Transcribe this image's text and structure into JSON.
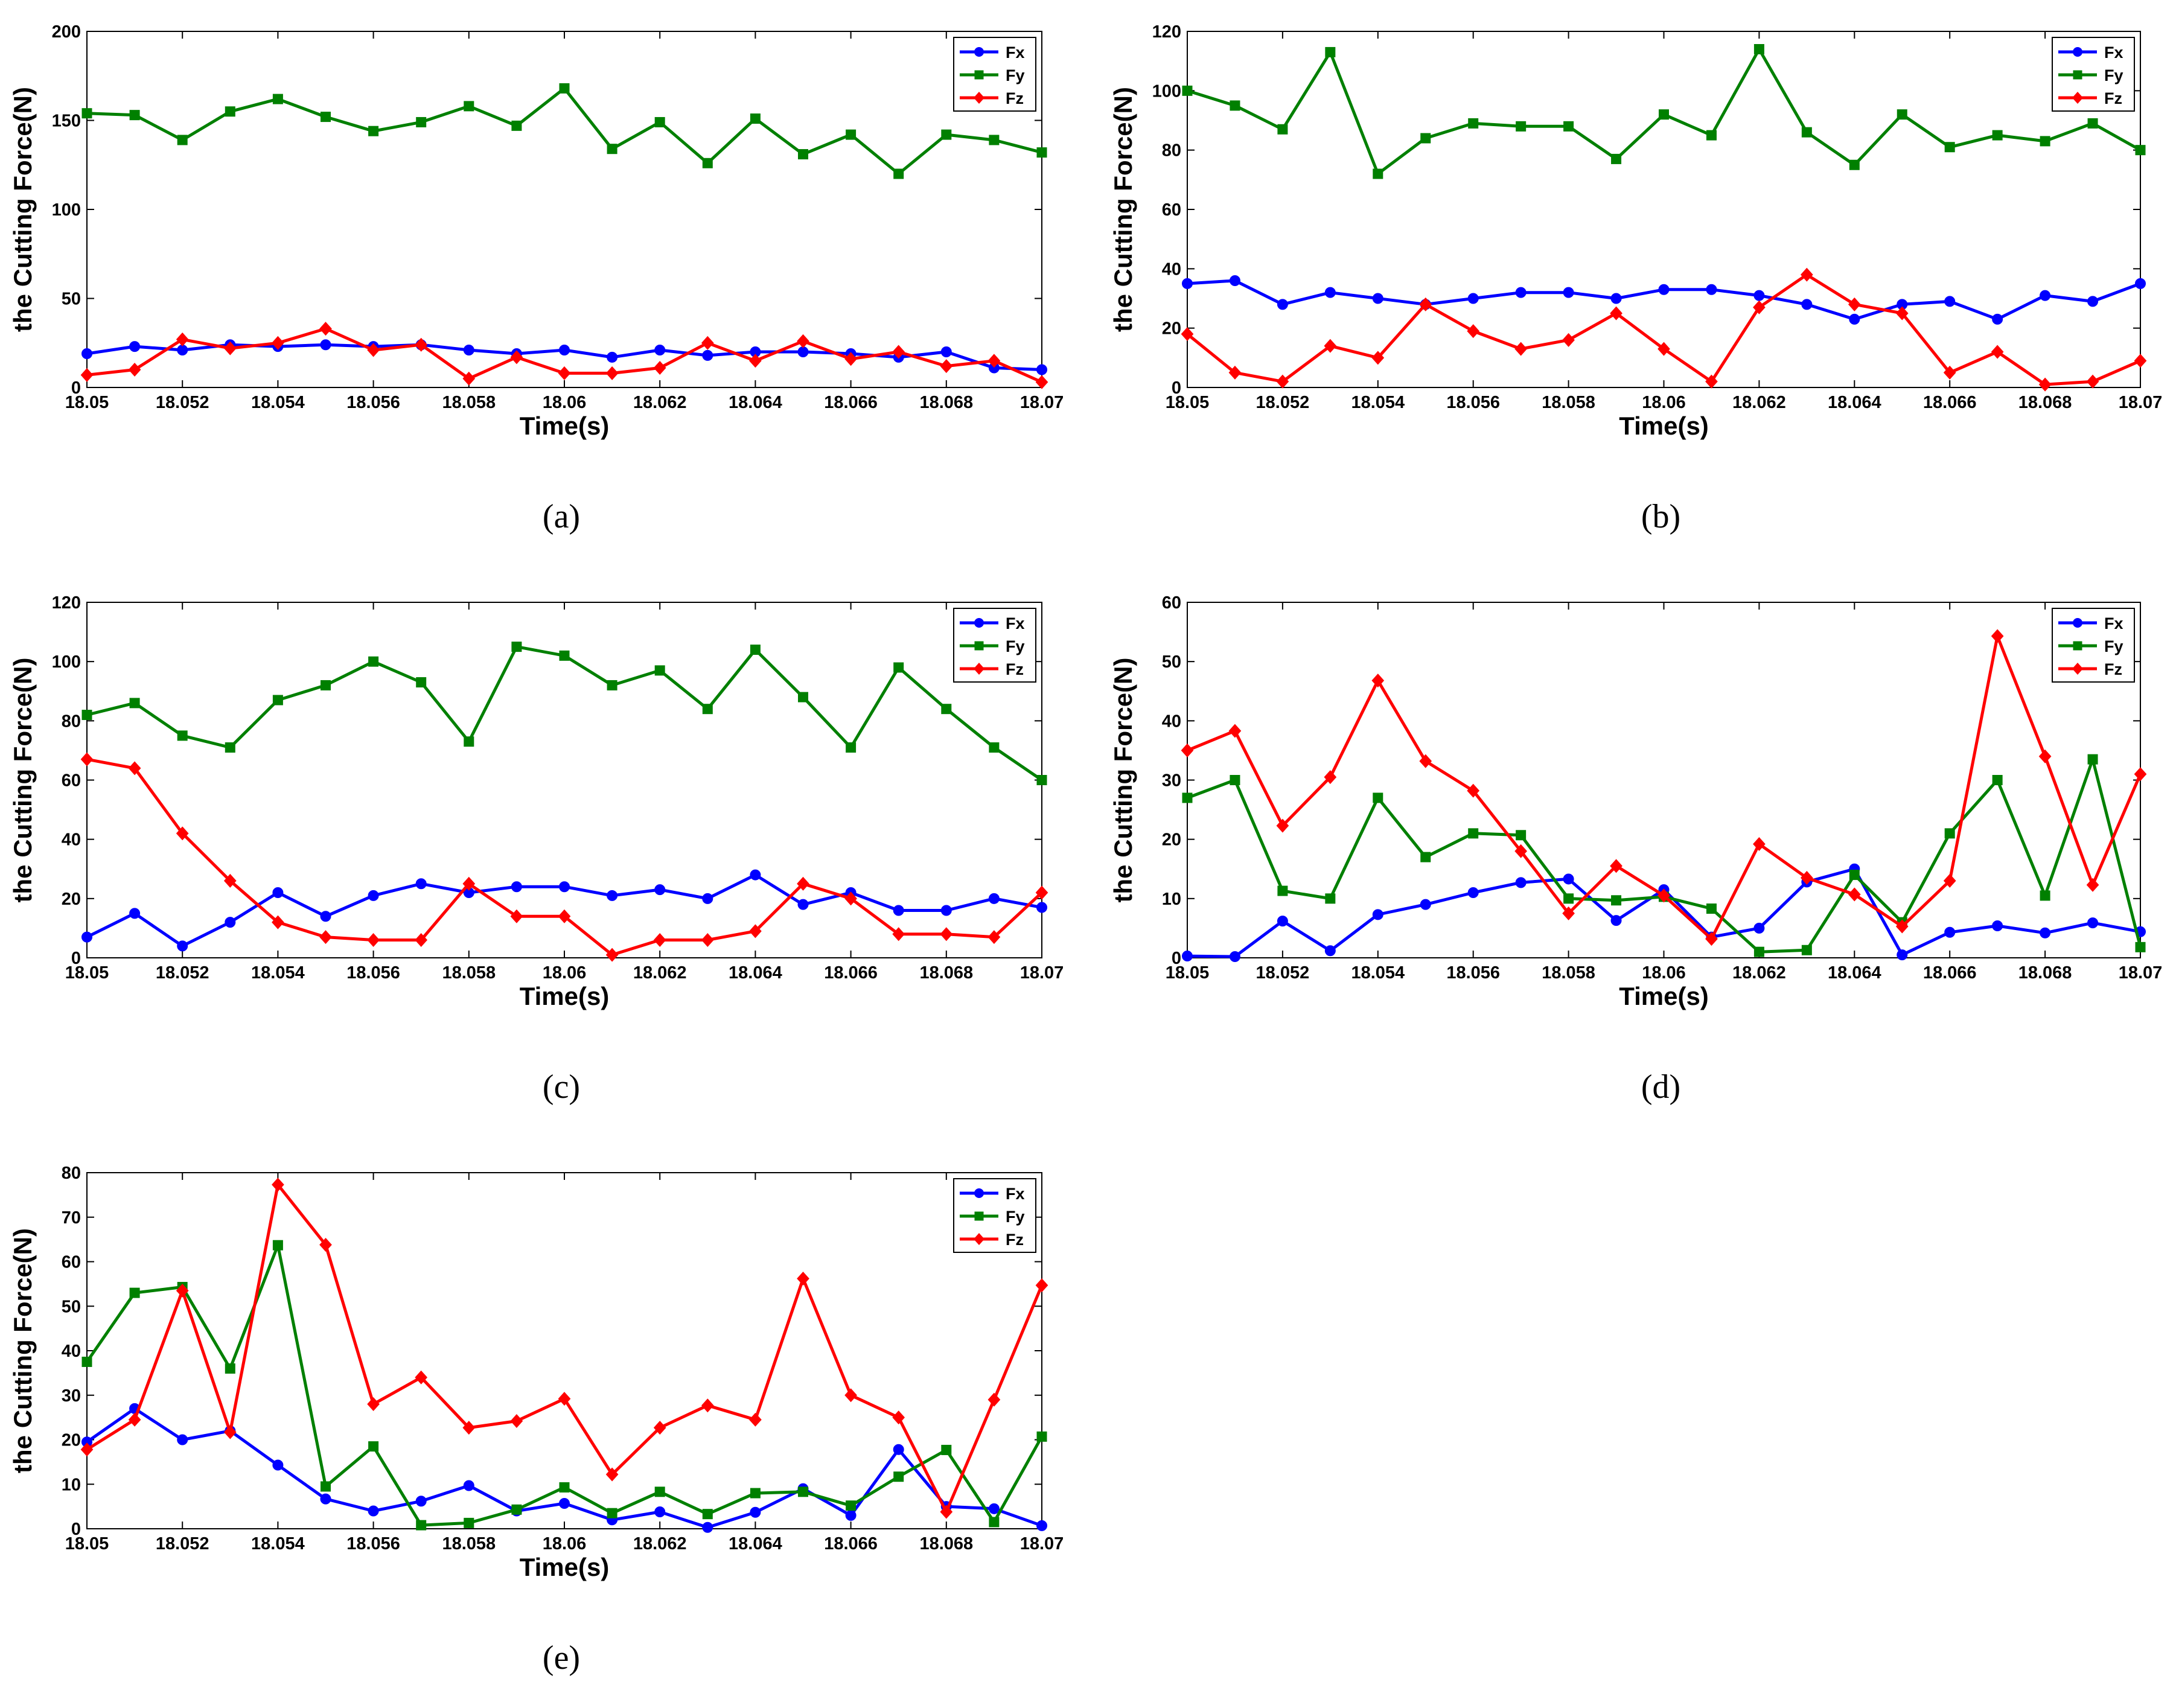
{
  "chart_data": [
    {
      "type": "line",
      "panel_label": "(a)",
      "title": "",
      "xlabel": "Time(s)",
      "ylabel": "the Cutting Force(N)",
      "xlim": [
        18.05,
        18.07
      ],
      "ylim": [
        0,
        200
      ],
      "xticks": [
        "18.05",
        "18.052",
        "18.054",
        "18.056",
        "18.058",
        "18.06",
        "18.062",
        "18.064",
        "18.066",
        "18.068",
        "18.07"
      ],
      "yticks": [
        "0",
        "50",
        "100",
        "150",
        "200"
      ],
      "legend_position": "top-right",
      "x": [
        18.05,
        18.051,
        18.052,
        18.053,
        18.054,
        18.055,
        18.056,
        18.057,
        18.058,
        18.059,
        18.06,
        18.061,
        18.062,
        18.063,
        18.064,
        18.065,
        18.066,
        18.067,
        18.068,
        18.069,
        18.07
      ],
      "series": [
        {
          "name": "Fx",
          "color": "#0000ff",
          "marker": "circle",
          "values": [
            19,
            23,
            21,
            24,
            23,
            24,
            23,
            24,
            21,
            19,
            21,
            17,
            21,
            18,
            20,
            20,
            19,
            17,
            20,
            11,
            10
          ]
        },
        {
          "name": "Fy",
          "color": "#008000",
          "marker": "square",
          "values": [
            154,
            153,
            139,
            155,
            162,
            152,
            144,
            149,
            158,
            147,
            168,
            134,
            149,
            126,
            151,
            131,
            142,
            120,
            142,
            139,
            132
          ]
        },
        {
          "name": "Fz",
          "color": "#ff0000",
          "marker": "diamond",
          "values": [
            7,
            10,
            27,
            22,
            25,
            33,
            21,
            24,
            5,
            17,
            8,
            8,
            11,
            25,
            15,
            26,
            16,
            20,
            12,
            15,
            3
          ]
        }
      ]
    },
    {
      "type": "line",
      "panel_label": "(b)",
      "title": "",
      "xlabel": "Time(s)",
      "ylabel": "the Cutting Force(N)",
      "xlim": [
        18.05,
        18.07
      ],
      "ylim": [
        0,
        120
      ],
      "xticks": [
        "18.05",
        "18.052",
        "18.054",
        "18.056",
        "18.058",
        "18.06",
        "18.062",
        "18.064",
        "18.066",
        "18.068",
        "18.07"
      ],
      "yticks": [
        "0",
        "20",
        "40",
        "60",
        "80",
        "100",
        "120"
      ],
      "legend_position": "top-right",
      "x": [
        18.05,
        18.051,
        18.052,
        18.053,
        18.054,
        18.055,
        18.056,
        18.057,
        18.058,
        18.059,
        18.06,
        18.061,
        18.062,
        18.063,
        18.064,
        18.065,
        18.066,
        18.067,
        18.068,
        18.069,
        18.07
      ],
      "series": [
        {
          "name": "Fx",
          "color": "#0000ff",
          "marker": "circle",
          "values": [
            35,
            36,
            28,
            32,
            30,
            28,
            30,
            32,
            32,
            30,
            33,
            33,
            31,
            28,
            23,
            28,
            29,
            23,
            31,
            29,
            35
          ]
        },
        {
          "name": "Fy",
          "color": "#008000",
          "marker": "square",
          "values": [
            100,
            95,
            87,
            113,
            72,
            84,
            89,
            88,
            88,
            77,
            92,
            85,
            114,
            86,
            75,
            92,
            81,
            85,
            83,
            89,
            80
          ]
        },
        {
          "name": "Fz",
          "color": "#ff0000",
          "marker": "diamond",
          "values": [
            18,
            5,
            2,
            14,
            10,
            28,
            19,
            13,
            16,
            25,
            13,
            2,
            27,
            38,
            28,
            25,
            5,
            12,
            1,
            2,
            9
          ]
        }
      ]
    },
    {
      "type": "line",
      "panel_label": "(c)",
      "title": "",
      "xlabel": "Time(s)",
      "ylabel": "the Cutting Force(N)",
      "xlim": [
        18.05,
        18.07
      ],
      "ylim": [
        0,
        120
      ],
      "xticks": [
        "18.05",
        "18.052",
        "18.054",
        "18.056",
        "18.058",
        "18.06",
        "18.062",
        "18.064",
        "18.066",
        "18.068",
        "18.07"
      ],
      "yticks": [
        "0",
        "20",
        "40",
        "60",
        "80",
        "100",
        "120"
      ],
      "legend_position": "top-right",
      "x": [
        18.05,
        18.051,
        18.052,
        18.053,
        18.054,
        18.055,
        18.056,
        18.057,
        18.058,
        18.059,
        18.06,
        18.061,
        18.062,
        18.063,
        18.064,
        18.065,
        18.066,
        18.067,
        18.068,
        18.069,
        18.07
      ],
      "series": [
        {
          "name": "Fx",
          "color": "#0000ff",
          "marker": "circle",
          "values": [
            7,
            15,
            4,
            12,
            22,
            14,
            21,
            25,
            22,
            24,
            24,
            21,
            23,
            20,
            28,
            18,
            22,
            16,
            16,
            20,
            17
          ]
        },
        {
          "name": "Fy",
          "color": "#008000",
          "marker": "square",
          "values": [
            82,
            86,
            75,
            71,
            87,
            92,
            100,
            93,
            73,
            105,
            102,
            92,
            97,
            84,
            104,
            88,
            71,
            98,
            84,
            71,
            60
          ]
        },
        {
          "name": "Fz",
          "color": "#ff0000",
          "marker": "diamond",
          "values": [
            67,
            64,
            42,
            26,
            12,
            7,
            6,
            6,
            25,
            14,
            14,
            1,
            6,
            6,
            9,
            25,
            20,
            8,
            8,
            7,
            22
          ]
        }
      ]
    },
    {
      "type": "line",
      "panel_label": "(d)",
      "title": "",
      "xlabel": "Time(s)",
      "ylabel": "the Cutting Force(N)",
      "xlim": [
        18.05,
        18.07
      ],
      "ylim": [
        0,
        60
      ],
      "xticks": [
        "18.05",
        "18.052",
        "18.054",
        "18.056",
        "18.058",
        "18.06",
        "18.062",
        "18.064",
        "18.066",
        "18.068",
        "18.07"
      ],
      "yticks": [
        "0",
        "10",
        "20",
        "30",
        "40",
        "50",
        "60"
      ],
      "legend_position": "top-right",
      "x": [
        18.05,
        18.051,
        18.052,
        18.053,
        18.054,
        18.055,
        18.056,
        18.057,
        18.058,
        18.059,
        18.06,
        18.061,
        18.062,
        18.063,
        18.064,
        18.065,
        18.066,
        18.067,
        18.068,
        18.069,
        18.07
      ],
      "series": [
        {
          "name": "Fx",
          "color": "#0000ff",
          "marker": "circle",
          "values": [
            0.3,
            0.2,
            6.2,
            1.2,
            7.3,
            9,
            11,
            12.7,
            13.3,
            6.3,
            11.5,
            3.5,
            5,
            12.8,
            15,
            0.5,
            4.3,
            5.4,
            4.2,
            5.9,
            4.4
          ]
        },
        {
          "name": "Fy",
          "color": "#008000",
          "marker": "square",
          "values": [
            27,
            30,
            11.3,
            10,
            27,
            17,
            21,
            20.7,
            10,
            9.7,
            10.3,
            8.3,
            1,
            1.3,
            14,
            6,
            21,
            30,
            10.5,
            33.5,
            1.8
          ]
        },
        {
          "name": "Fz",
          "color": "#ff0000",
          "marker": "diamond",
          "values": [
            35,
            38.3,
            22.3,
            30.5,
            46.8,
            33.2,
            28.2,
            18,
            7.5,
            15.5,
            10.5,
            3.2,
            19.2,
            13.5,
            10.7,
            5.3,
            13,
            54.3,
            34,
            12.3,
            31
          ]
        }
      ]
    },
    {
      "type": "line",
      "panel_label": "(e)",
      "title": "",
      "xlabel": "Time(s)",
      "ylabel": "the Cutting Force(N)",
      "xlim": [
        18.05,
        18.07
      ],
      "ylim": [
        0,
        80
      ],
      "xticks": [
        "18.05",
        "18.052",
        "18.054",
        "18.056",
        "18.058",
        "18.06",
        "18.062",
        "18.064",
        "18.066",
        "18.068",
        "18.07"
      ],
      "yticks": [
        "0",
        "10",
        "20",
        "30",
        "40",
        "50",
        "60",
        "70",
        "80"
      ],
      "legend_position": "top-right",
      "x": [
        18.05,
        18.051,
        18.052,
        18.053,
        18.054,
        18.055,
        18.056,
        18.057,
        18.058,
        18.059,
        18.06,
        18.061,
        18.062,
        18.063,
        18.064,
        18.065,
        18.066,
        18.067,
        18.068,
        18.069,
        18.07
      ],
      "series": [
        {
          "name": "Fx",
          "color": "#0000ff",
          "marker": "circle",
          "values": [
            19.5,
            27,
            20,
            22,
            14.3,
            6.7,
            4,
            6.2,
            9.7,
            4,
            5.7,
            2,
            3.8,
            0.3,
            3.7,
            9,
            3,
            17.8,
            5,
            4.5,
            0.7
          ]
        },
        {
          "name": "Fy",
          "color": "#008000",
          "marker": "square",
          "values": [
            37.5,
            53,
            54.3,
            36,
            63.7,
            9.5,
            18.5,
            0.8,
            1.3,
            4.3,
            9.3,
            3.5,
            8.3,
            3.3,
            8,
            8.3,
            5.2,
            11.7,
            17.7,
            1.5,
            20.7
          ]
        },
        {
          "name": "Fz",
          "color": "#ff0000",
          "marker": "diamond",
          "values": [
            17.8,
            24.5,
            53.5,
            21.7,
            77.3,
            63.8,
            28,
            34,
            22.7,
            24.2,
            29.2,
            12.2,
            22.7,
            27.7,
            24.5,
            56.2,
            30,
            25,
            3.8,
            29,
            54.7
          ]
        }
      ]
    }
  ]
}
